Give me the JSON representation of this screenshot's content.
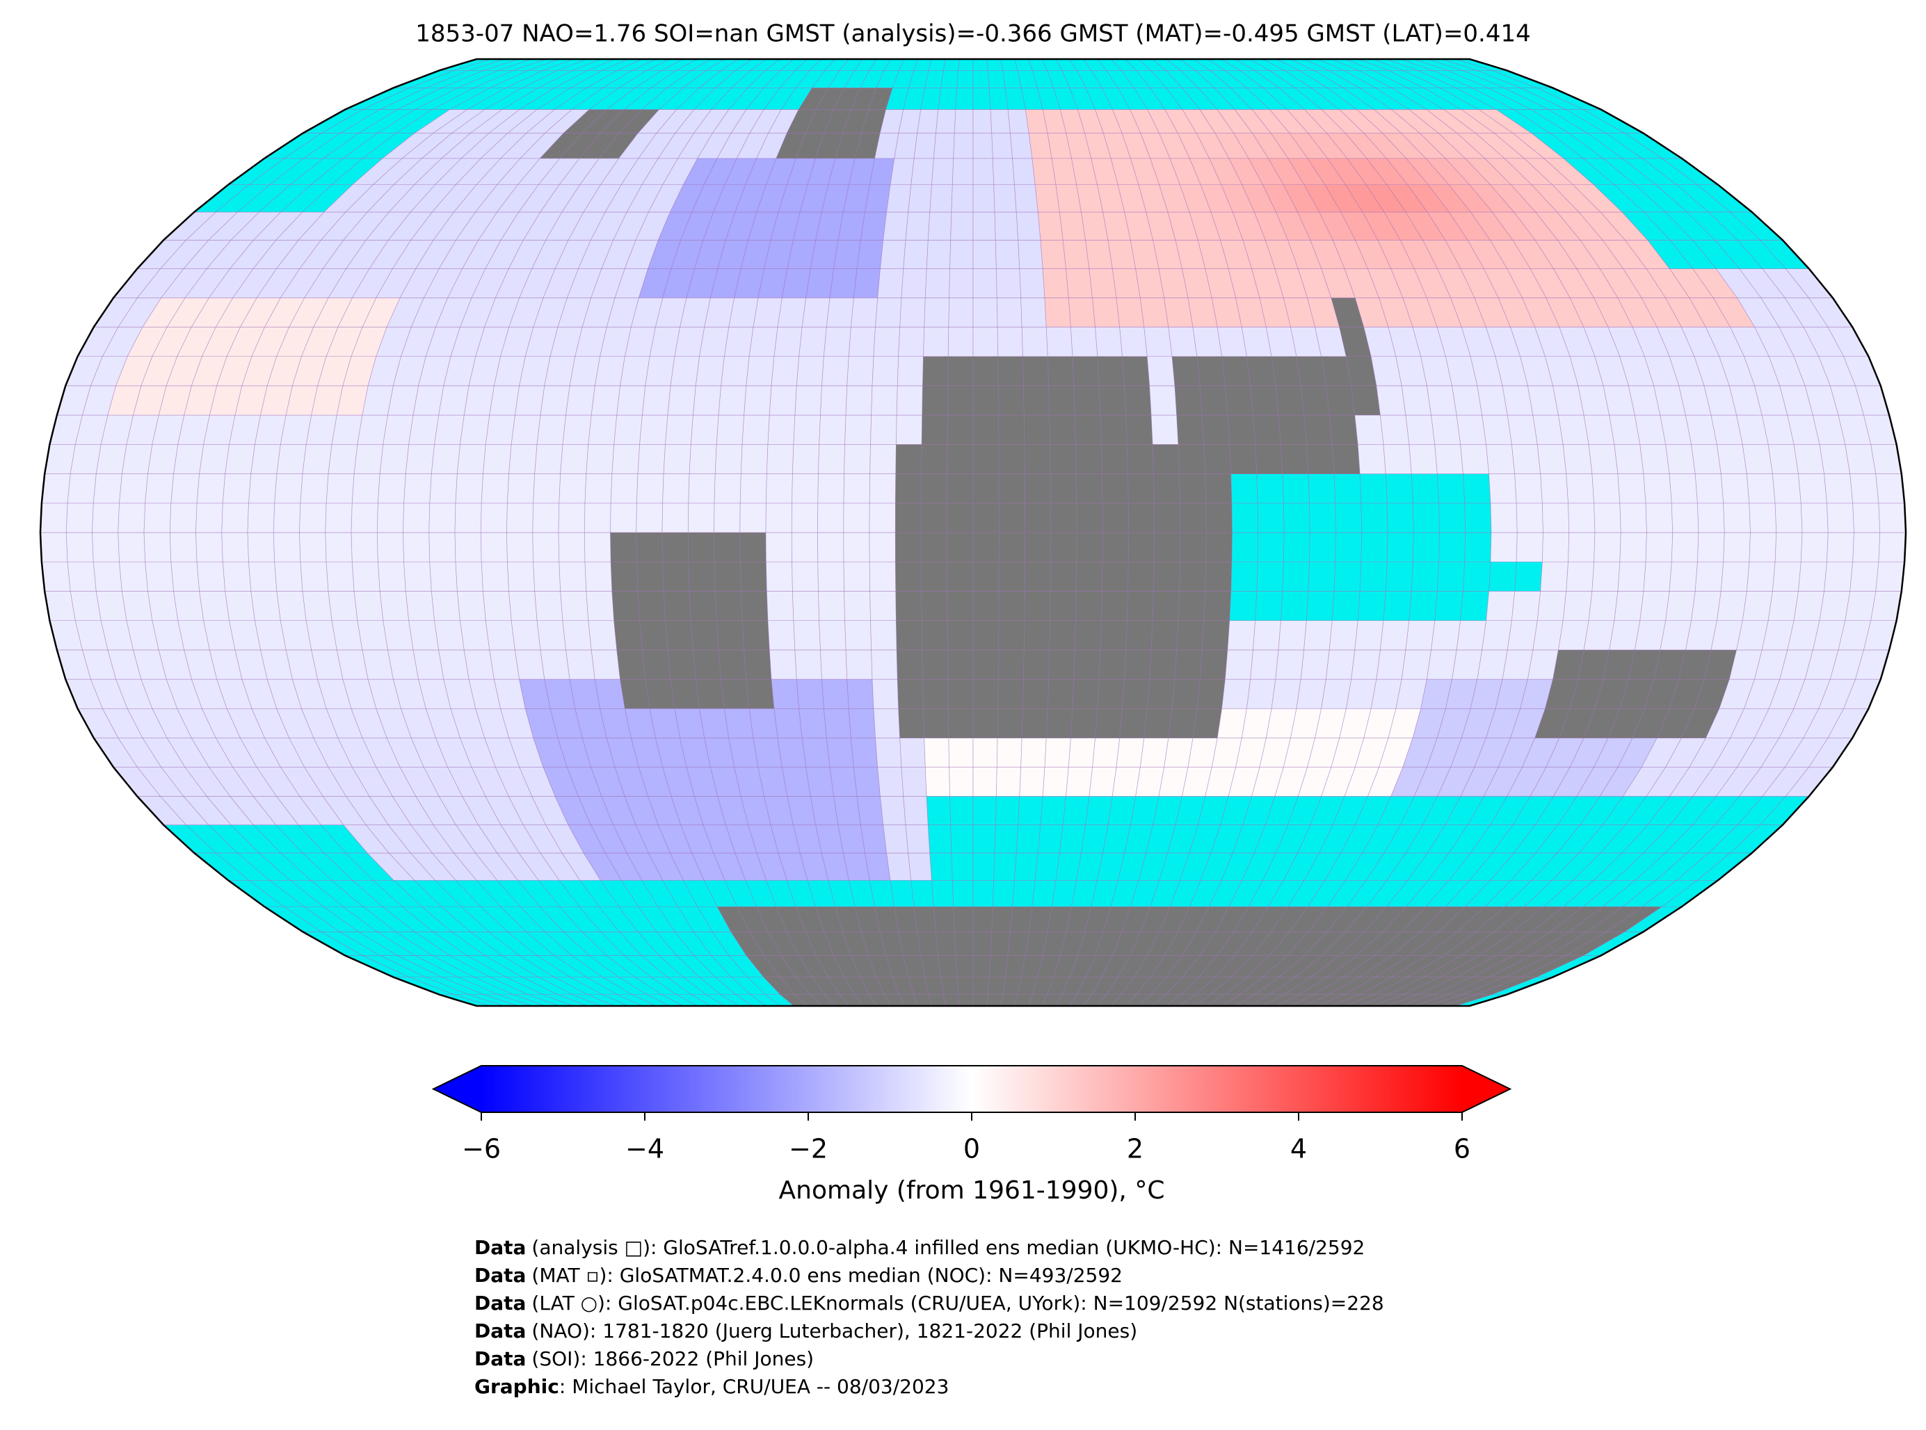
{
  "chart_data": {
    "type": "map",
    "title": "1853-07 NAO=1.76 SOI=nan GMST (analysis)=-0.366 GMST (MAT)=-0.495 GMST (LAT)=0.414",
    "colorbar": {
      "label": "Anomaly (from 1961-1990), °C",
      "clim": [
        -6,
        6
      ],
      "colors": [
        "#0000ff",
        "#ffffff",
        "#ff0000"
      ],
      "ticks": [
        {
          "value": -6,
          "label": "−6"
        },
        {
          "value": -4,
          "label": "−4"
        },
        {
          "value": -2,
          "label": "−2"
        },
        0,
        2,
        4,
        6
      ]
    },
    "credits": [
      {
        "bold": "Data",
        "text": "(analysis □): GloSATref.1.0.0.0-alpha.4 infilled ens median (UKMO-HC): N=1416/2592"
      },
      {
        "bold": "Data",
        "text": "(MAT ▫): GloSATMAT.2.4.0.0 ens median (NOC): N=493/2592"
      },
      {
        "bold": "Data",
        "text": "(LAT ○): GloSAT.p04c.EBC.LEKnormals (CRU/UEA, UYork): N=109/2592 N(stations)=228"
      },
      {
        "bold": "Data",
        "text": "(NAO): 1781-1820 (Juerg Luterbacher), 1821-2022 (Phil Jones)"
      },
      {
        "bold": "Data",
        "text": "(SOI): 1866-2022 (Phil Jones)"
      },
      {
        "bold": "Graphic",
        "text": ": Michael Taylor, CRU/UEA -- 08/03/2023"
      }
    ]
  }
}
